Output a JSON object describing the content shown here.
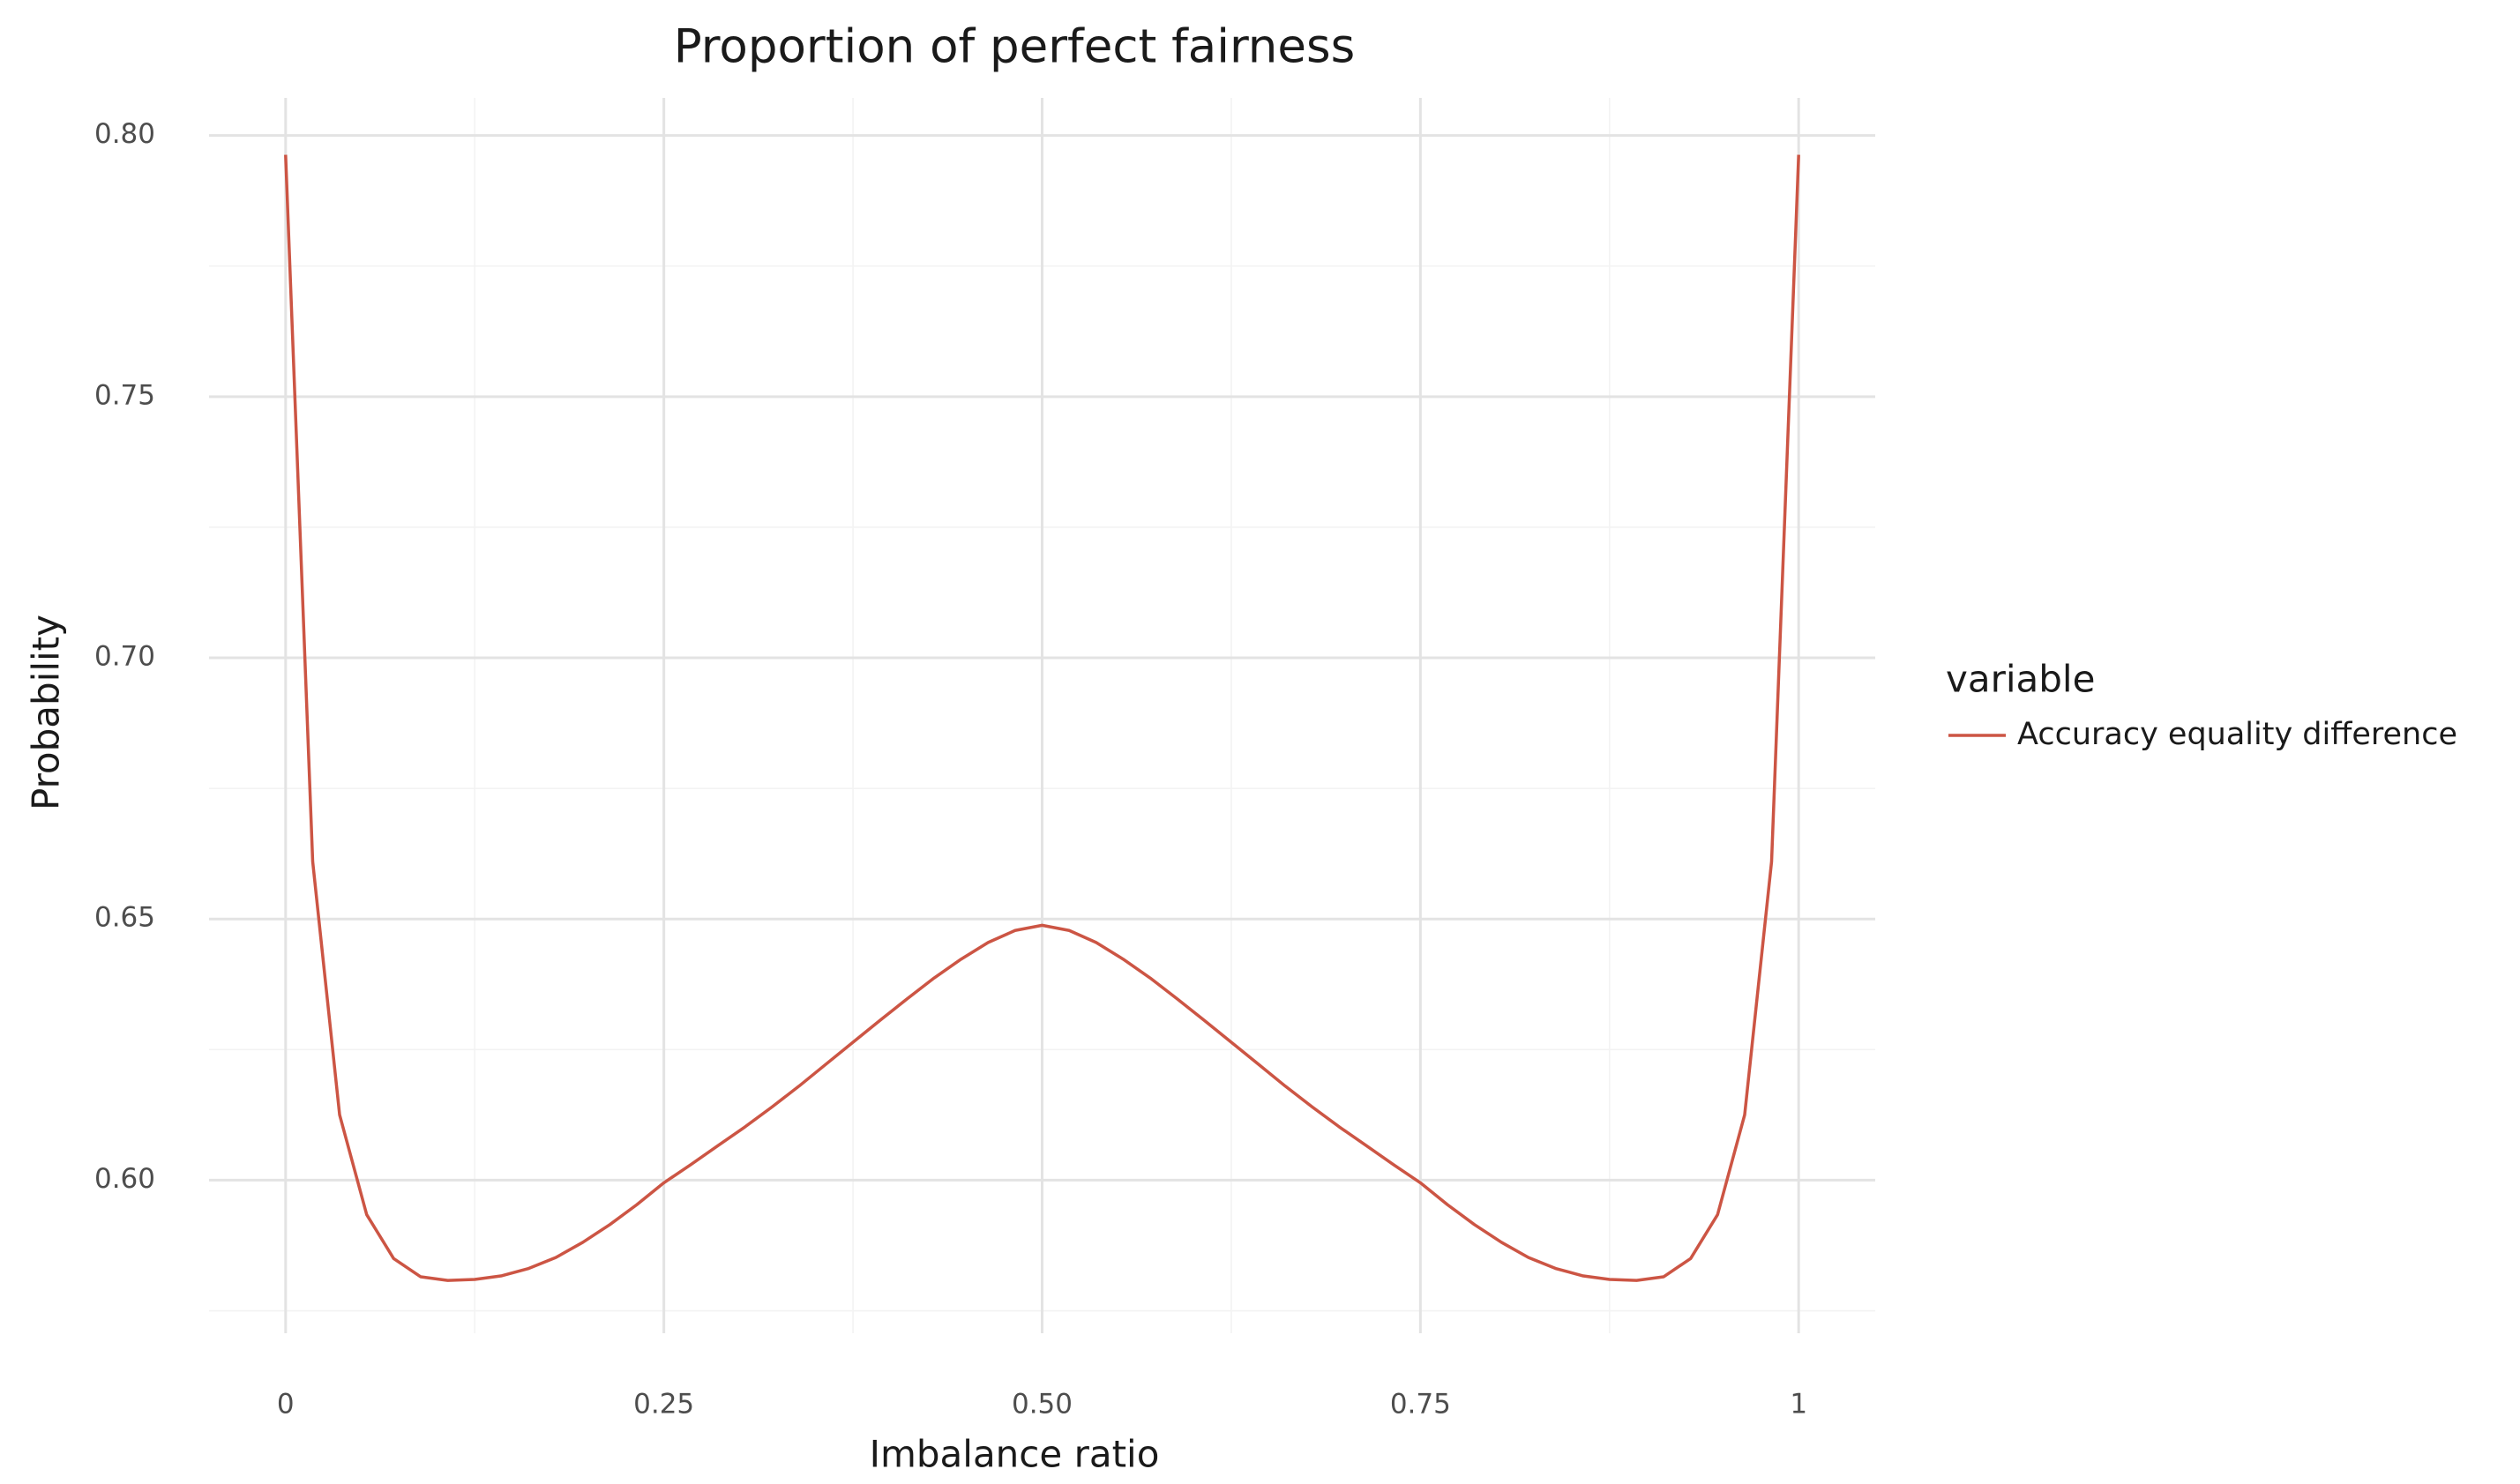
{
  "chart_data": {
    "type": "line",
    "title": "Proportion of perfect fairness",
    "x_label": "Imbalance ratio",
    "y_label": "Probability",
    "legend_title": "variable",
    "legend_position": "right",
    "grid": true,
    "x": [
      0,
      0.0179,
      0.0357,
      0.0536,
      0.0714,
      0.0893,
      0.1071,
      0.125,
      0.1429,
      0.1607,
      0.1786,
      0.1964,
      0.2143,
      0.2321,
      0.25,
      0.2679,
      0.2857,
      0.3036,
      0.3214,
      0.3393,
      0.3571,
      0.375,
      0.3929,
      0.4107,
      0.4286,
      0.4464,
      0.4643,
      0.4821,
      0.5,
      0.5179,
      0.5357,
      0.5536,
      0.5714,
      0.5893,
      0.6071,
      0.625,
      0.6429,
      0.6607,
      0.6786,
      0.6964,
      0.7143,
      0.7321,
      0.75,
      0.7679,
      0.7857,
      0.8036,
      0.8214,
      0.8393,
      0.8571,
      0.875,
      0.8929,
      0.9107,
      0.9286,
      0.9464,
      0.9643,
      0.9821,
      1
    ],
    "series": [
      {
        "name": "Accuracy equality difference",
        "color": "#cc5544",
        "values": [
          0.7963,
          0.661,
          0.6125,
          0.5934,
          0.585,
          0.5815,
          0.5808,
          0.581,
          0.5817,
          0.5831,
          0.5852,
          0.5881,
          0.5915,
          0.5953,
          0.5995,
          0.603,
          0.6066,
          0.6102,
          0.614,
          0.618,
          0.6222,
          0.6264,
          0.6306,
          0.6347,
          0.6387,
          0.6423,
          0.6455,
          0.6478,
          0.6488,
          0.6478,
          0.6455,
          0.6423,
          0.6387,
          0.6347,
          0.6306,
          0.6264,
          0.6222,
          0.618,
          0.614,
          0.6102,
          0.6066,
          0.603,
          0.5995,
          0.5953,
          0.5915,
          0.5881,
          0.5852,
          0.5831,
          0.5817,
          0.581,
          0.5808,
          0.5815,
          0.585,
          0.5934,
          0.6125,
          0.661,
          0.7963
        ]
      }
    ],
    "xlim": [
      -0.0506,
      1.0506
    ],
    "ylim": [
      0.5707,
      0.8072
    ],
    "xticks": [
      0,
      0.25,
      {
        "value": 0.5,
        "label": "0.50"
      },
      0.75,
      1
    ],
    "yticks": [
      {
        "value": 0.6,
        "label": "0.60"
      },
      0.65,
      {
        "value": 0.7,
        "label": "0.70"
      },
      0.75,
      {
        "value": 0.8,
        "label": "0.80"
      }
    ],
    "x_minor_ticks": [
      0.125,
      0.375,
      0.625,
      0.875
    ],
    "y_minor_ticks": [
      0.575,
      0.625,
      0.675,
      0.725,
      0.775
    ]
  }
}
